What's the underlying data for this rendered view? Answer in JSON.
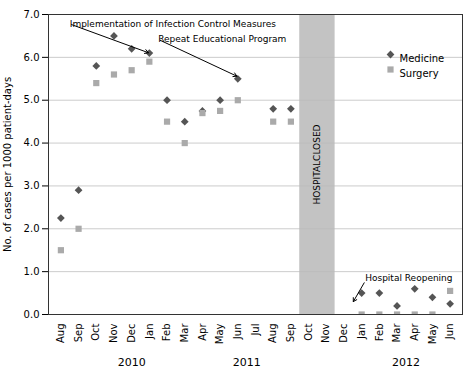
{
  "chart_data": {
    "type": "scatter",
    "ylabel": "No. of cases per 1000 patient-days",
    "categories": [
      "Aug",
      "Sep",
      "Oct",
      "Nov",
      "Dec",
      "Jan",
      "Feb",
      "Mar",
      "Apr",
      "May",
      "Jun",
      "Jul",
      "Aug",
      "Sep",
      "Oct",
      "Nov",
      "Dec",
      "Jan",
      "Feb",
      "Mar",
      "Apr",
      "May",
      "Jun"
    ],
    "series": [
      {
        "name": "Medicine",
        "color": "#555555",
        "marker": "diamond",
        "values": [
          2.25,
          2.9,
          5.8,
          6.5,
          6.2,
          6.1,
          5.0,
          4.5,
          4.75,
          5.0,
          5.5,
          null,
          4.8,
          4.8,
          null,
          null,
          null,
          0.5,
          0.5,
          0.2,
          0.6,
          0.4,
          0.25
        ]
      },
      {
        "name": "Surgery",
        "color": "#aaaaaa",
        "marker": "square",
        "values": [
          1.5,
          2.0,
          5.4,
          5.6,
          5.7,
          5.9,
          4.5,
          4.0,
          4.7,
          4.75,
          5.0,
          null,
          4.5,
          4.5,
          null,
          null,
          null,
          0.0,
          0.0,
          0.0,
          0.0,
          0.0,
          0.55
        ]
      }
    ],
    "ylim": [
      0.0,
      7.0
    ],
    "yticks": [
      {
        "value": 0,
        "label": "0.0"
      },
      {
        "value": 1,
        "label": "1.0"
      },
      {
        "value": 2,
        "label": "2.0"
      },
      {
        "value": 3,
        "label": "3.0"
      },
      {
        "value": 4,
        "label": "4.0"
      },
      {
        "value": 5,
        "label": "5.0"
      },
      {
        "value": 6,
        "label": "6.0"
      },
      {
        "value": 7,
        "label": "7.0"
      }
    ],
    "grid": true,
    "legend": "upper right",
    "shaded_regions": [
      {
        "from": 13.5,
        "to": 15.5,
        "label": "HOSPITALCLOSED",
        "color": "#b8b8b8"
      }
    ],
    "annotations": [
      {
        "text": "Implementation of Infection Control Measures",
        "x": 5,
        "y": 6.1,
        "text_x": 0.5,
        "text_y": 6.78
      },
      {
        "text": "Repeat Educational Program",
        "x": 10,
        "y": 5.55,
        "text_x": 5.5,
        "text_y": 6.42
      },
      {
        "text": "Hospital Reopening",
        "x": 16.5,
        "y": 0.28,
        "text_x": 17.2,
        "text_y": 0.78
      }
    ],
    "year_labels": [
      {
        "label": "2010",
        "x": 4.0
      },
      {
        "label": "2011",
        "x": 10.5
      },
      {
        "label": "2012",
        "x": 19.5
      }
    ]
  }
}
